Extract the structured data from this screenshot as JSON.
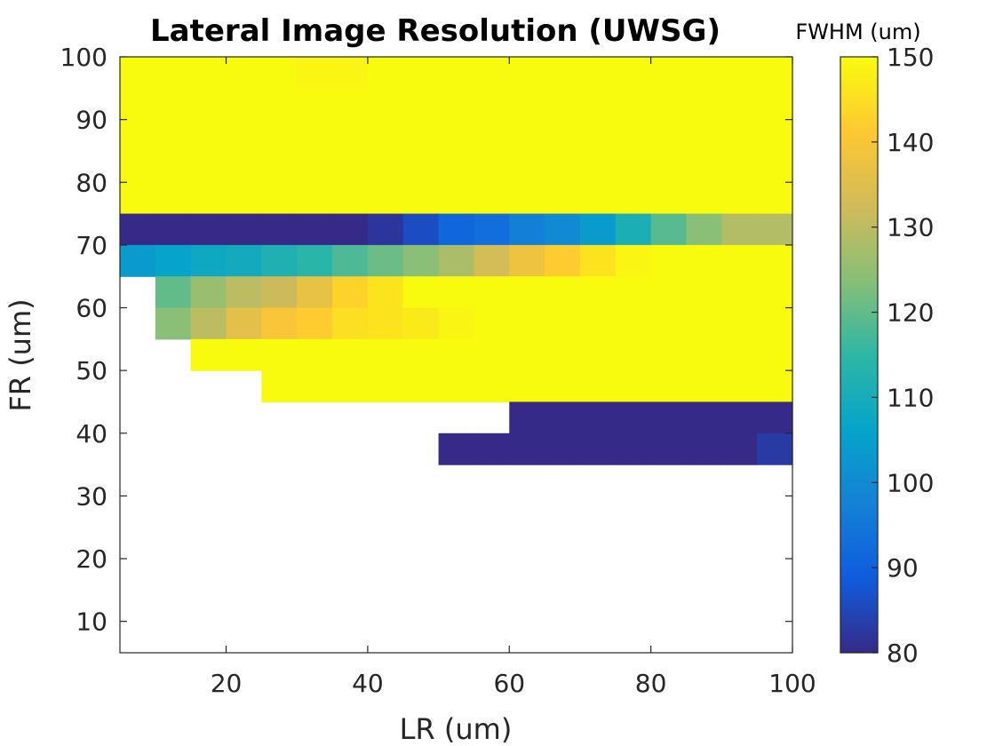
{
  "chart_data": {
    "type": "heatmap",
    "title": "Lateral Image Resolution (UWSG)",
    "xlabel": "LR (um)",
    "ylabel": "FR (um)",
    "colorbar_label": "FWHM (um)",
    "xlim": [
      5,
      100
    ],
    "ylim": [
      5,
      100
    ],
    "clim": [
      80,
      150
    ],
    "colormap": "parula",
    "xticks": [
      "20",
      "40",
      "60",
      "80",
      "100"
    ],
    "yticks": [
      "10",
      "20",
      "30",
      "40",
      "50",
      "60",
      "70",
      "80",
      "90",
      "100"
    ],
    "cticks": [
      "80",
      "90",
      "100",
      "110",
      "120",
      "130",
      "140",
      "150"
    ],
    "x": [
      5,
      10,
      15,
      20,
      25,
      30,
      35,
      40,
      45,
      50,
      55,
      60,
      65,
      70,
      75,
      80,
      85,
      90,
      95
    ],
    "y": [
      95,
      90,
      85,
      80,
      75,
      70,
      65,
      60,
      55,
      50,
      45,
      40,
      35,
      30,
      25,
      20,
      15,
      10,
      5
    ],
    "values": [
      [
        150,
        150,
        150,
        150,
        150,
        149,
        149,
        150,
        150,
        150,
        150,
        150,
        150,
        150,
        150,
        150,
        150,
        150,
        150
      ],
      [
        150,
        150,
        150,
        150,
        150,
        150,
        150,
        150,
        150,
        150,
        150,
        150,
        150,
        150,
        150,
        150,
        150,
        150,
        150
      ],
      [
        150,
        150,
        150,
        150,
        150,
        150,
        150,
        150,
        150,
        150,
        150,
        150,
        150,
        150,
        150,
        150,
        150,
        150,
        150
      ],
      [
        150,
        150,
        150,
        150,
        150,
        150,
        150,
        150,
        150,
        150,
        150,
        150,
        150,
        150,
        150,
        150,
        150,
        150,
        150
      ],
      [
        150,
        150,
        150,
        150,
        150,
        150,
        150,
        150,
        150,
        150,
        150,
        150,
        150,
        150,
        150,
        150,
        150,
        150,
        150
      ],
      [
        80,
        80,
        80,
        80,
        80,
        80,
        80,
        82,
        86,
        91,
        93,
        97,
        100,
        104,
        111,
        119,
        124,
        129,
        129
      ],
      [
        104,
        106,
        108,
        109,
        112,
        114,
        118,
        121,
        124,
        128,
        133,
        138,
        142,
        146,
        149,
        150,
        150,
        150,
        150
      ],
      [
        null,
        120,
        126,
        130,
        132,
        137,
        143,
        146,
        150,
        150,
        150,
        150,
        150,
        150,
        150,
        150,
        150,
        150,
        150
      ],
      [
        null,
        124,
        130,
        136,
        140,
        142,
        145,
        146,
        147,
        149,
        150,
        150,
        150,
        150,
        150,
        150,
        150,
        150,
        150
      ],
      [
        null,
        null,
        150,
        150,
        150,
        150,
        150,
        150,
        150,
        150,
        150,
        150,
        150,
        150,
        150,
        150,
        150,
        150,
        150
      ],
      [
        null,
        null,
        null,
        null,
        150,
        150,
        150,
        150,
        150,
        150,
        150,
        150,
        150,
        150,
        150,
        150,
        150,
        150,
        150
      ],
      [
        null,
        null,
        null,
        null,
        null,
        null,
        null,
        null,
        null,
        null,
        null,
        80,
        80,
        80,
        80,
        80,
        80,
        80,
        80
      ],
      [
        null,
        null,
        null,
        null,
        null,
        null,
        null,
        null,
        null,
        80,
        80,
        80,
        80,
        80,
        80,
        80,
        80,
        80,
        83
      ],
      [
        null,
        null,
        null,
        null,
        null,
        null,
        null,
        null,
        null,
        null,
        null,
        null,
        null,
        null,
        null,
        null,
        null,
        null,
        null
      ],
      [
        null,
        null,
        null,
        null,
        null,
        null,
        null,
        null,
        null,
        null,
        null,
        null,
        null,
        null,
        null,
        null,
        null,
        null,
        null
      ],
      [
        null,
        null,
        null,
        null,
        null,
        null,
        null,
        null,
        null,
        null,
        null,
        null,
        null,
        null,
        null,
        null,
        null,
        null,
        null
      ],
      [
        null,
        null,
        null,
        null,
        null,
        null,
        null,
        null,
        null,
        null,
        null,
        null,
        null,
        null,
        null,
        null,
        null,
        null,
        null
      ],
      [
        null,
        null,
        null,
        null,
        null,
        null,
        null,
        null,
        null,
        null,
        null,
        null,
        null,
        null,
        null,
        null,
        null,
        null,
        null
      ],
      [
        null,
        null,
        null,
        null,
        null,
        null,
        null,
        null,
        null,
        null,
        null,
        null,
        null,
        null,
        null,
        null,
        null,
        null,
        null
      ]
    ]
  }
}
